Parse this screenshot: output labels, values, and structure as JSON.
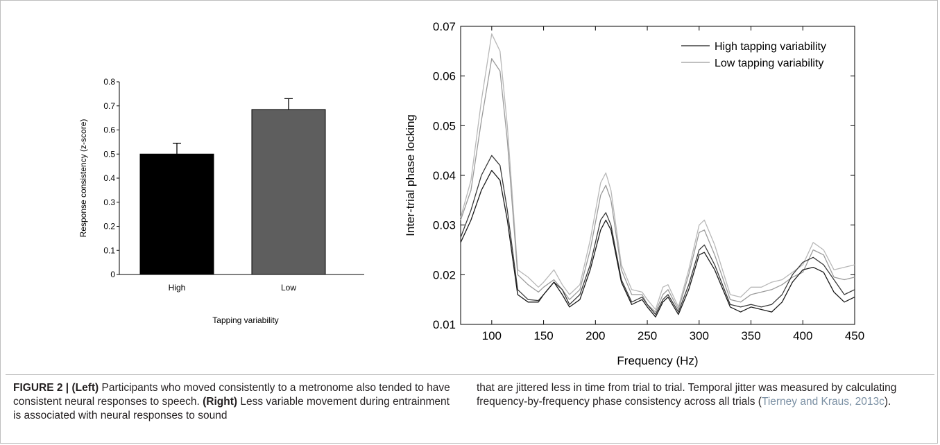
{
  "chart_data": [
    {
      "type": "bar",
      "title": "",
      "xlabel": "Tapping variability",
      "ylabel": "Response consistency (z-score)",
      "categories": [
        "High",
        "Low"
      ],
      "values": [
        0.5,
        0.685
      ],
      "errors": [
        0.045,
        0.045
      ],
      "bar_colors": [
        "#000000",
        "#5e5e5e"
      ],
      "ylim": [
        0,
        0.8
      ],
      "yticks": [
        "0",
        "0.1",
        "0.2",
        "0.3",
        "0.4",
        "0.5",
        "0.6",
        "0.7",
        "0.8"
      ],
      "grid": false
    },
    {
      "type": "line",
      "title": "",
      "xlabel": "Frequency (Hz)",
      "ylabel": "Inter-trial phase locking",
      "xlim": [
        70,
        450
      ],
      "ylim": [
        0.01,
        0.07
      ],
      "xticks": [
        "100",
        "150",
        "200",
        "250",
        "300",
        "350",
        "400",
        "450"
      ],
      "yticks": [
        "0.01",
        "0.02",
        "0.03",
        "0.04",
        "0.05",
        "0.06",
        "0.07"
      ],
      "legend_position": "top-right",
      "grid": false,
      "series": [
        {
          "name": "High tapping variability",
          "color": "#1a1a1a",
          "points": [
            [
              70,
              0.0265
            ],
            [
              80,
              0.031
            ],
            [
              90,
              0.037
            ],
            [
              100,
              0.041
            ],
            [
              108,
              0.039
            ],
            [
              115,
              0.031
            ],
            [
              125,
              0.016
            ],
            [
              135,
              0.0145
            ],
            [
              145,
              0.0145
            ],
            [
              150,
              0.016
            ],
            [
              160,
              0.0185
            ],
            [
              168,
              0.016
            ],
            [
              175,
              0.0135
            ],
            [
              185,
              0.015
            ],
            [
              195,
              0.021
            ],
            [
              205,
              0.029
            ],
            [
              210,
              0.031
            ],
            [
              215,
              0.029
            ],
            [
              225,
              0.0185
            ],
            [
              235,
              0.014
            ],
            [
              245,
              0.015
            ],
            [
              250,
              0.0135
            ],
            [
              258,
              0.0115
            ],
            [
              265,
              0.0145
            ],
            [
              270,
              0.0155
            ],
            [
              280,
              0.012
            ],
            [
              290,
              0.017
            ],
            [
              300,
              0.024
            ],
            [
              305,
              0.0245
            ],
            [
              315,
              0.021
            ],
            [
              330,
              0.0135
            ],
            [
              340,
              0.0125
            ],
            [
              350,
              0.0135
            ],
            [
              360,
              0.013
            ],
            [
              370,
              0.0125
            ],
            [
              380,
              0.0145
            ],
            [
              390,
              0.0185
            ],
            [
              400,
              0.021
            ],
            [
              410,
              0.0215
            ],
            [
              420,
              0.0205
            ],
            [
              430,
              0.0165
            ],
            [
              440,
              0.0145
            ],
            [
              450,
              0.0155
            ]
          ]
        },
        {
          "name": "",
          "color": "#3a3a3a",
          "points": [
            [
              70,
              0.0275
            ],
            [
              80,
              0.033
            ],
            [
              90,
              0.04
            ],
            [
              100,
              0.044
            ],
            [
              108,
              0.042
            ],
            [
              115,
              0.033
            ],
            [
              125,
              0.017
            ],
            [
              135,
              0.015
            ],
            [
              145,
              0.0148
            ],
            [
              150,
              0.016
            ],
            [
              160,
              0.0185
            ],
            [
              168,
              0.017
            ],
            [
              175,
              0.014
            ],
            [
              185,
              0.016
            ],
            [
              195,
              0.022
            ],
            [
              205,
              0.031
            ],
            [
              210,
              0.0325
            ],
            [
              215,
              0.03
            ],
            [
              225,
              0.019
            ],
            [
              235,
              0.0145
            ],
            [
              245,
              0.0155
            ],
            [
              250,
              0.014
            ],
            [
              258,
              0.012
            ],
            [
              265,
              0.015
            ],
            [
              270,
              0.016
            ],
            [
              280,
              0.0125
            ],
            [
              290,
              0.018
            ],
            [
              300,
              0.025
            ],
            [
              305,
              0.026
            ],
            [
              315,
              0.022
            ],
            [
              330,
              0.014
            ],
            [
              340,
              0.0135
            ],
            [
              350,
              0.014
            ],
            [
              360,
              0.0135
            ],
            [
              370,
              0.014
            ],
            [
              380,
              0.016
            ],
            [
              390,
              0.02
            ],
            [
              400,
              0.0225
            ],
            [
              410,
              0.0235
            ],
            [
              420,
              0.022
            ],
            [
              430,
              0.019
            ],
            [
              440,
              0.016
            ],
            [
              450,
              0.017
            ]
          ]
        },
        {
          "name": "Low tapping variability",
          "color": "#9a9a9a",
          "points": [
            [
              70,
              0.031
            ],
            [
              80,
              0.037
            ],
            [
              90,
              0.051
            ],
            [
              100,
              0.0635
            ],
            [
              108,
              0.061
            ],
            [
              115,
              0.047
            ],
            [
              125,
              0.02
            ],
            [
              135,
              0.018
            ],
            [
              145,
              0.0165
            ],
            [
              150,
              0.0175
            ],
            [
              160,
              0.019
            ],
            [
              168,
              0.017
            ],
            [
              175,
              0.015
            ],
            [
              185,
              0.017
            ],
            [
              195,
              0.025
            ],
            [
              205,
              0.036
            ],
            [
              210,
              0.038
            ],
            [
              215,
              0.035
            ],
            [
              225,
              0.021
            ],
            [
              235,
              0.016
            ],
            [
              245,
              0.016
            ],
            [
              250,
              0.014
            ],
            [
              258,
              0.0125
            ],
            [
              265,
              0.016
            ],
            [
              270,
              0.017
            ],
            [
              280,
              0.013
            ],
            [
              290,
              0.02
            ],
            [
              300,
              0.0285
            ],
            [
              305,
              0.029
            ],
            [
              315,
              0.024
            ],
            [
              330,
              0.015
            ],
            [
              340,
              0.0145
            ],
            [
              350,
              0.016
            ],
            [
              360,
              0.0165
            ],
            [
              370,
              0.017
            ],
            [
              380,
              0.018
            ],
            [
              390,
              0.0195
            ],
            [
              400,
              0.0205
            ],
            [
              410,
              0.025
            ],
            [
              420,
              0.024
            ],
            [
              430,
              0.0195
            ],
            [
              440,
              0.019
            ],
            [
              450,
              0.0195
            ]
          ]
        },
        {
          "name": "",
          "color": "#b8b8b8",
          "points": [
            [
              70,
              0.0315
            ],
            [
              80,
              0.039
            ],
            [
              90,
              0.055
            ],
            [
              100,
              0.0685
            ],
            [
              108,
              0.065
            ],
            [
              115,
              0.05
            ],
            [
              125,
              0.021
            ],
            [
              135,
              0.0195
            ],
            [
              145,
              0.0175
            ],
            [
              150,
              0.0185
            ],
            [
              160,
              0.021
            ],
            [
              168,
              0.018
            ],
            [
              175,
              0.016
            ],
            [
              185,
              0.018
            ],
            [
              195,
              0.027
            ],
            [
              205,
              0.0385
            ],
            [
              210,
              0.0405
            ],
            [
              215,
              0.037
            ],
            [
              225,
              0.022
            ],
            [
              235,
              0.017
            ],
            [
              245,
              0.0165
            ],
            [
              250,
              0.015
            ],
            [
              258,
              0.013
            ],
            [
              265,
              0.0175
            ],
            [
              270,
              0.018
            ],
            [
              280,
              0.0135
            ],
            [
              290,
              0.021
            ],
            [
              300,
              0.03
            ],
            [
              305,
              0.031
            ],
            [
              315,
              0.026
            ],
            [
              330,
              0.016
            ],
            [
              340,
              0.0155
            ],
            [
              350,
              0.0175
            ],
            [
              360,
              0.0175
            ],
            [
              370,
              0.0185
            ],
            [
              380,
              0.019
            ],
            [
              390,
              0.0205
            ],
            [
              400,
              0.022
            ],
            [
              410,
              0.0265
            ],
            [
              420,
              0.025
            ],
            [
              430,
              0.021
            ],
            [
              440,
              0.0215
            ],
            [
              450,
              0.022
            ]
          ]
        }
      ]
    }
  ],
  "caption": {
    "label": "FIGURE 2 | ",
    "left_tag": "(Left)",
    "left_text": " Participants who moved consistently to a metronome also tended to have consistent neural responses to speech. ",
    "right_tag": "(Right)",
    "right_text": " Less variable movement during entrainment is associated with neural responses to sound",
    "continued_text": "that are jittered less in time from trial to trial. Temporal jitter was measured by calculating frequency-by-frequency phase consistency across all trials (",
    "reference": "Tierney and Kraus, 2013c",
    "closing": ")."
  }
}
